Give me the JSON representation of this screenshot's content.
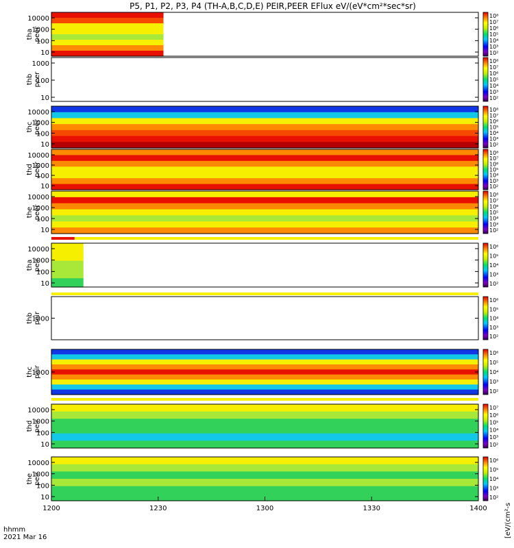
{
  "figure": {
    "title": "P5, P1, P2, P3, P4 (TH-A,B,C,D,E) PEIR,PEER EFlux eV/(eV*cm²*sec*sr)",
    "x_caption": "hhmm",
    "date": "2021 Mar 16",
    "cbar_unit": "[eV/(cm²-s"
  },
  "chart_data": {
    "type": "heatmap",
    "title": "P5, P1, P2, P3, P4 (TH-A,B,C,D,E) PEIR,PEER EFlux eV/(eV*cm²*sec*sr)",
    "x_axis": {
      "label": "hhmm",
      "ticks": [
        "1200",
        "1230",
        "1300",
        "1330",
        "1400"
      ],
      "range_minutes": [
        720,
        840
      ]
    },
    "colormap": "rainbow (black-purple-blue-cyan-green-yellow-red)",
    "panels": [
      {
        "id": "tha-peer",
        "ylabel": [
          "tha",
          "peer"
        ],
        "yticks": [
          "10000",
          "1000",
          "100",
          "10"
        ],
        "yscale": "log",
        "data_minutes": [
          720,
          751.5
        ],
        "levels": [
          "red",
          "orange-red",
          "yellow",
          "yellow",
          "green-yellow",
          "yellow",
          "orange",
          "red"
        ],
        "cbar_ticks": [
          "10⁸",
          "10⁷",
          "10⁶",
          "10⁵",
          "10⁴",
          "10³",
          "10²"
        ],
        "flag": null
      },
      {
        "id": "thb-peer",
        "ylabel": [
          "thb",
          "peer"
        ],
        "yticks": [
          "1000",
          "100",
          "10"
        ],
        "yscale": "log",
        "data_minutes": null,
        "levels": [],
        "cbar_ticks": [
          "10⁸",
          "10⁷",
          "10⁶",
          "10⁵",
          "10⁴",
          "10³",
          "10²"
        ],
        "flag": null
      },
      {
        "id": "thc-peer",
        "ylabel": [
          "thc",
          "peer"
        ],
        "yticks": [
          "10000",
          "1000",
          "100",
          "10"
        ],
        "yscale": "log",
        "data_minutes": [
          720,
          840
        ],
        "levels": [
          "blue",
          "cyan",
          "yellow",
          "orange",
          "orange-red",
          "red",
          "dark-red"
        ],
        "cbar_ticks": [
          "10⁸",
          "10⁷",
          "10⁶",
          "10⁵",
          "10⁴",
          "10³",
          "10²"
        ],
        "flag": null
      },
      {
        "id": "thd-peer",
        "ylabel": [
          "thd",
          "peer"
        ],
        "yticks": [
          "10000",
          "1000",
          "100",
          "10"
        ],
        "yscale": "log",
        "data_minutes": [
          720,
          840
        ],
        "levels": [
          "orange",
          "red",
          "orange",
          "yellow",
          "yellow",
          "orange",
          "red"
        ],
        "cbar_ticks": [
          "10⁸",
          "10⁷",
          "10⁶",
          "10⁵",
          "10⁴",
          "10³",
          "10²"
        ],
        "flag": null
      },
      {
        "id": "the-peer",
        "ylabel": [
          "the",
          "peer"
        ],
        "yticks": [
          "10000",
          "1000",
          "100",
          "10"
        ],
        "yscale": "log",
        "data_minutes": [
          720,
          840
        ],
        "levels": [
          "yellow",
          "red",
          "orange",
          "yellow",
          "green-yellow",
          "yellow",
          "orange"
        ],
        "cbar_ticks": [
          "10⁸",
          "10⁷",
          "10⁶",
          "10⁵",
          "10⁴",
          "10³",
          "10²"
        ],
        "flag": {
          "red_until_minute": 726.5
        }
      },
      {
        "id": "tha-peir",
        "ylabel": [
          "tha",
          "peir"
        ],
        "yticks": [
          "10000",
          "1000",
          "100",
          "10"
        ],
        "yscale": "log",
        "data_minutes": [
          720,
          729
        ],
        "levels": [
          "yellow",
          "yellow",
          "green-yellow",
          "green-yellow",
          "green"
        ],
        "cbar_ticks": [
          "10⁶",
          "10⁵",
          "10⁴",
          "10³",
          "10²"
        ],
        "flag": {
          "red_until_minute": null
        }
      },
      {
        "id": "thb-peir",
        "ylabel": [
          "thb",
          "peir"
        ],
        "yticks": [
          "1000"
        ],
        "yscale": "log",
        "data_minutes": null,
        "levels": [],
        "cbar_ticks": [
          "10⁶",
          "10⁵",
          "10⁴",
          "10³",
          "10²"
        ],
        "flag": null
      },
      {
        "id": "thc-peir",
        "ylabel": [
          "thc",
          "peir"
        ],
        "yticks": [
          "1000"
        ],
        "yscale": "log",
        "data_minutes": [
          720,
          840
        ],
        "levels": [
          "blue",
          "cyan",
          "yellow",
          "orange",
          "red",
          "orange",
          "yellow",
          "cyan",
          "blue"
        ],
        "cbar_ticks": [
          "10⁶",
          "10⁵",
          "10⁴",
          "10³",
          "10²"
        ],
        "flag": {
          "red_until_minute": 720.5
        }
      },
      {
        "id": "thd-peir",
        "ylabel": [
          "thd",
          "peir"
        ],
        "yticks": [
          "10000",
          "1000",
          "100",
          "10"
        ],
        "yscale": "log",
        "data_minutes": [
          720,
          840
        ],
        "levels": [
          "yellow",
          "green-yellow",
          "green",
          "green",
          "cyan",
          "green"
        ],
        "cbar_ticks": [
          "10⁷",
          "10⁶",
          "10⁵",
          "10⁴",
          "10³",
          "10²"
        ],
        "flag": null
      },
      {
        "id": "the-peir",
        "ylabel": [
          "the",
          "peir"
        ],
        "yticks": [
          "10000",
          "1000",
          "100",
          "10"
        ],
        "yscale": "log",
        "data_minutes": [
          720,
          840
        ],
        "levels": [
          "yellow",
          "green-yellow",
          "green",
          "green-yellow",
          "green",
          "green"
        ],
        "cbar_ticks": [
          "10⁶",
          "10⁵",
          "10⁴",
          "10³",
          "10²"
        ],
        "flag": null
      }
    ]
  }
}
